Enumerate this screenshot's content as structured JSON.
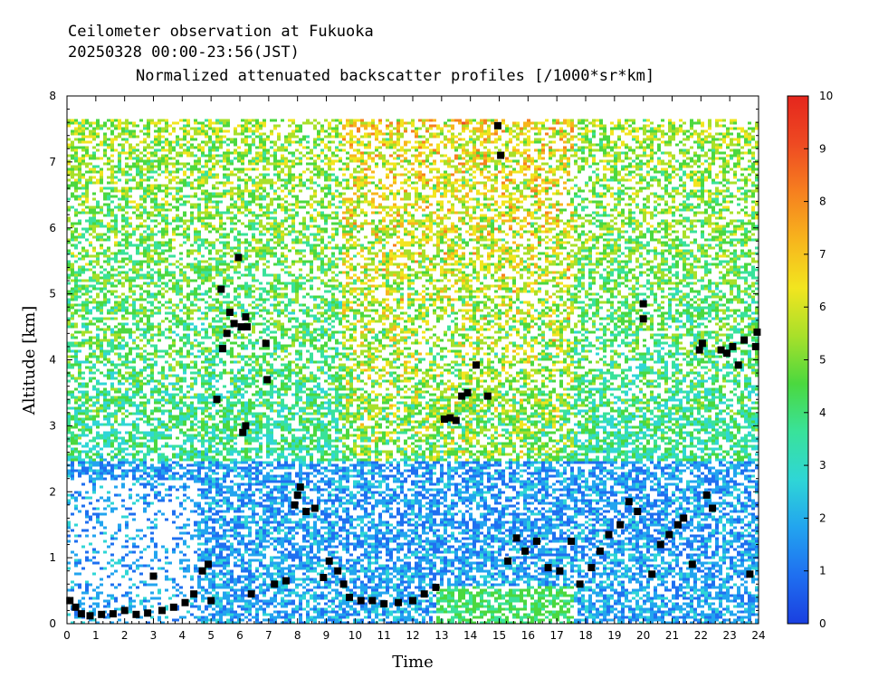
{
  "header": {
    "line1": "Ceilometer observation at Fukuoka",
    "line2": "20250328  00:00-23:56(JST)",
    "line3": "Normalized attenuated backscatter profiles [/1000*sr*km]"
  },
  "chart_data": {
    "type": "heatmap",
    "xlabel": "Time",
    "ylabel": "Altitude [km]",
    "xlim": [
      0,
      24
    ],
    "ylim": [
      0,
      8
    ],
    "x_ticks": [
      "0",
      "1",
      "2",
      "3",
      "4",
      "5",
      "6",
      "7",
      "8",
      "9",
      "10",
      "11",
      "12",
      "13",
      "14",
      "15",
      "16",
      "17",
      "18",
      "19",
      "20",
      "21",
      "22",
      "23",
      "24"
    ],
    "y_ticks": [
      "0",
      "1",
      "2",
      "3",
      "4",
      "5",
      "6",
      "7",
      "8"
    ],
    "colorbar": {
      "range": [
        0,
        10
      ],
      "ticks": [
        "0",
        "1",
        "2",
        "3",
        "4",
        "5",
        "6",
        "7",
        "8",
        "9",
        "10"
      ],
      "colors": [
        "#1a3fe0",
        "#1f6ff0",
        "#22a4ef",
        "#2fd6d6",
        "#39e29a",
        "#4bd83f",
        "#a8e02a",
        "#f2e51f",
        "#f7b51d",
        "#f6801f",
        "#ee4a22",
        "#e5261d"
      ]
    },
    "data_top_km": 7.65,
    "colormap_note": "",
    "cloud_base_points": [
      {
        "x": 0.1,
        "y": 0.35
      },
      {
        "x": 0.3,
        "y": 0.25
      },
      {
        "x": 0.5,
        "y": 0.15
      },
      {
        "x": 0.8,
        "y": 0.12
      },
      {
        "x": 1.2,
        "y": 0.14
      },
      {
        "x": 1.6,
        "y": 0.15
      },
      {
        "x": 2.0,
        "y": 0.2
      },
      {
        "x": 2.4,
        "y": 0.14
      },
      {
        "x": 2.8,
        "y": 0.16
      },
      {
        "x": 3.0,
        "y": 0.72
      },
      {
        "x": 3.3,
        "y": 0.2
      },
      {
        "x": 3.7,
        "y": 0.25
      },
      {
        "x": 4.1,
        "y": 0.32
      },
      {
        "x": 4.4,
        "y": 0.45
      },
      {
        "x": 4.7,
        "y": 0.8
      },
      {
        "x": 4.9,
        "y": 0.9
      },
      {
        "x": 5.0,
        "y": 0.35
      },
      {
        "x": 5.2,
        "y": 3.4
      },
      {
        "x": 5.35,
        "y": 5.07
      },
      {
        "x": 5.4,
        "y": 4.17
      },
      {
        "x": 5.55,
        "y": 4.4
      },
      {
        "x": 5.65,
        "y": 4.72
      },
      {
        "x": 5.8,
        "y": 4.55
      },
      {
        "x": 5.95,
        "y": 5.55
      },
      {
        "x": 6.05,
        "y": 4.5
      },
      {
        "x": 6.2,
        "y": 4.65
      },
      {
        "x": 6.25,
        "y": 4.5
      },
      {
        "x": 6.1,
        "y": 2.9
      },
      {
        "x": 6.2,
        "y": 3.0
      },
      {
        "x": 6.4,
        "y": 0.45
      },
      {
        "x": 6.9,
        "y": 4.25
      },
      {
        "x": 6.95,
        "y": 3.7
      },
      {
        "x": 7.2,
        "y": 0.6
      },
      {
        "x": 7.6,
        "y": 0.65
      },
      {
        "x": 7.9,
        "y": 1.8
      },
      {
        "x": 8.0,
        "y": 1.95
      },
      {
        "x": 8.1,
        "y": 2.07
      },
      {
        "x": 8.3,
        "y": 1.7
      },
      {
        "x": 8.6,
        "y": 1.75
      },
      {
        "x": 8.9,
        "y": 0.7
      },
      {
        "x": 9.1,
        "y": 0.95
      },
      {
        "x": 9.4,
        "y": 0.8
      },
      {
        "x": 9.6,
        "y": 0.6
      },
      {
        "x": 9.8,
        "y": 0.4
      },
      {
        "x": 10.2,
        "y": 0.35
      },
      {
        "x": 10.6,
        "y": 0.35
      },
      {
        "x": 11.0,
        "y": 0.3
      },
      {
        "x": 11.5,
        "y": 0.32
      },
      {
        "x": 12.0,
        "y": 0.35
      },
      {
        "x": 12.4,
        "y": 0.45
      },
      {
        "x": 12.8,
        "y": 0.55
      },
      {
        "x": 13.1,
        "y": 3.1
      },
      {
        "x": 13.3,
        "y": 3.12
      },
      {
        "x": 13.5,
        "y": 3.08
      },
      {
        "x": 13.7,
        "y": 3.45
      },
      {
        "x": 13.9,
        "y": 3.5
      },
      {
        "x": 14.2,
        "y": 3.92
      },
      {
        "x": 14.6,
        "y": 3.45
      },
      {
        "x": 14.95,
        "y": 7.55
      },
      {
        "x": 15.05,
        "y": 7.1
      },
      {
        "x": 15.3,
        "y": 0.95
      },
      {
        "x": 15.6,
        "y": 1.3
      },
      {
        "x": 15.9,
        "y": 1.1
      },
      {
        "x": 16.3,
        "y": 1.25
      },
      {
        "x": 16.7,
        "y": 0.85
      },
      {
        "x": 17.1,
        "y": 0.8
      },
      {
        "x": 17.5,
        "y": 1.25
      },
      {
        "x": 17.8,
        "y": 0.6
      },
      {
        "x": 18.2,
        "y": 0.85
      },
      {
        "x": 18.5,
        "y": 1.1
      },
      {
        "x": 18.8,
        "y": 1.35
      },
      {
        "x": 19.2,
        "y": 1.5
      },
      {
        "x": 19.5,
        "y": 1.85
      },
      {
        "x": 19.8,
        "y": 1.7
      },
      {
        "x": 20.0,
        "y": 4.85
      },
      {
        "x": 20.0,
        "y": 4.62
      },
      {
        "x": 20.3,
        "y": 0.75
      },
      {
        "x": 20.6,
        "y": 1.2
      },
      {
        "x": 20.9,
        "y": 1.35
      },
      {
        "x": 21.2,
        "y": 1.5
      },
      {
        "x": 21.4,
        "y": 1.6
      },
      {
        "x": 21.7,
        "y": 0.9
      },
      {
        "x": 21.95,
        "y": 4.15
      },
      {
        "x": 22.05,
        "y": 4.25
      },
      {
        "x": 22.2,
        "y": 1.95
      },
      {
        "x": 22.4,
        "y": 1.75
      },
      {
        "x": 22.7,
        "y": 4.15
      },
      {
        "x": 22.9,
        "y": 4.1
      },
      {
        "x": 23.1,
        "y": 4.2
      },
      {
        "x": 23.3,
        "y": 3.92
      },
      {
        "x": 23.5,
        "y": 4.3
      },
      {
        "x": 23.7,
        "y": 0.75
      },
      {
        "x": 23.95,
        "y": 4.42
      },
      {
        "x": 23.9,
        "y": 4.2
      }
    ]
  }
}
